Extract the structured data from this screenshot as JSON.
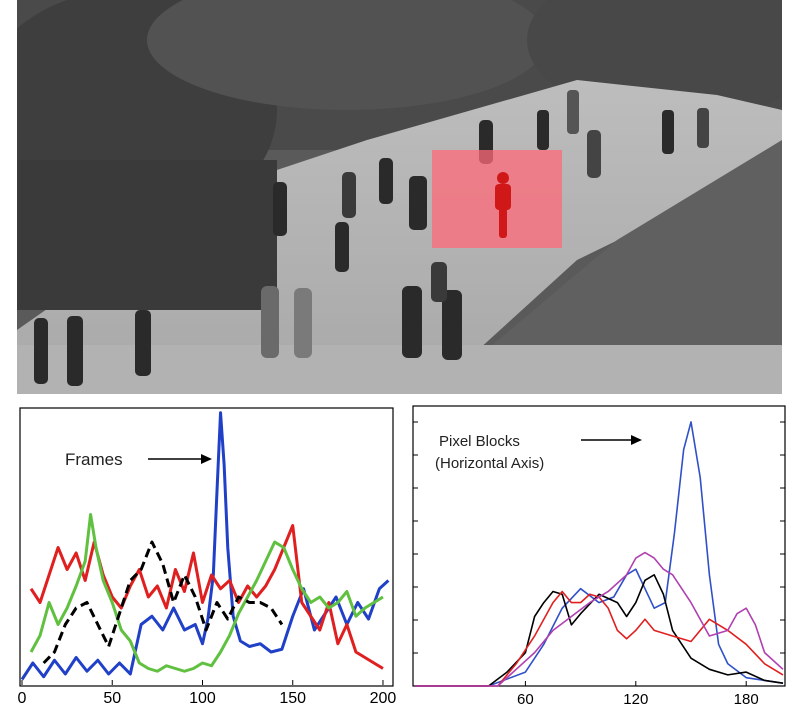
{
  "photo": {
    "description_icon": "crowd-walkway-photo-icon",
    "highlight_color": "#ff6b7a"
  },
  "chart_data": [
    {
      "type": "line",
      "title": "",
      "xlabel": "",
      "ylabel": "",
      "xlim": [
        0,
        205
      ],
      "ylim": [
        0,
        1
      ],
      "x_ticks": [
        0,
        50,
        100,
        150,
        200
      ],
      "x_tick_labels": [
        "0",
        "50",
        "100",
        "150",
        "200"
      ],
      "annotation": "Frames",
      "grid": false,
      "series": [
        {
          "color": "#2040c8",
          "style": "solid",
          "x": [
            0,
            6,
            12,
            18,
            24,
            30,
            36,
            42,
            48,
            54,
            60,
            66,
            72,
            78,
            84,
            90,
            96,
            100,
            103,
            106,
            108,
            110,
            112,
            114,
            117,
            121,
            126,
            132,
            138,
            144,
            150,
            156,
            162,
            168,
            174,
            180,
            186,
            192,
            198,
            203
          ],
          "y": [
            0.02,
            0.08,
            0.03,
            0.09,
            0.04,
            0.1,
            0.05,
            0.09,
            0.04,
            0.08,
            0.04,
            0.22,
            0.25,
            0.2,
            0.28,
            0.2,
            0.22,
            0.15,
            0.24,
            0.4,
            0.7,
            0.99,
            0.8,
            0.5,
            0.25,
            0.16,
            0.14,
            0.15,
            0.12,
            0.13,
            0.25,
            0.35,
            0.2,
            0.26,
            0.32,
            0.22,
            0.3,
            0.24,
            0.35,
            0.38
          ]
        },
        {
          "color": "#e02020",
          "style": "solid",
          "x": [
            5,
            10,
            15,
            20,
            25,
            30,
            35,
            40,
            45,
            50,
            55,
            60,
            65,
            70,
            75,
            80,
            85,
            90,
            95,
            100,
            105,
            110,
            115,
            120,
            125,
            130,
            135,
            140,
            145,
            150,
            155,
            160,
            165,
            170,
            175,
            180,
            185,
            190,
            195,
            200
          ],
          "y": [
            0.35,
            0.3,
            0.4,
            0.5,
            0.42,
            0.48,
            0.38,
            0.52,
            0.4,
            0.32,
            0.28,
            0.36,
            0.42,
            0.32,
            0.36,
            0.28,
            0.42,
            0.34,
            0.48,
            0.3,
            0.4,
            0.35,
            0.38,
            0.3,
            0.36,
            0.32,
            0.36,
            0.42,
            0.5,
            0.58,
            0.3,
            0.25,
            0.2,
            0.3,
            0.15,
            0.22,
            0.12,
            0.1,
            0.08,
            0.06
          ]
        },
        {
          "color": "#60c040",
          "style": "solid",
          "x": [
            5,
            10,
            15,
            20,
            25,
            30,
            35,
            38,
            41,
            45,
            50,
            55,
            60,
            65,
            70,
            75,
            80,
            85,
            90,
            95,
            100,
            105,
            110,
            115,
            120,
            125,
            130,
            135,
            140,
            145,
            150,
            155,
            160,
            165,
            170,
            175,
            180,
            185,
            190,
            195,
            200
          ],
          "y": [
            0.12,
            0.18,
            0.3,
            0.22,
            0.28,
            0.36,
            0.45,
            0.62,
            0.5,
            0.38,
            0.3,
            0.2,
            0.16,
            0.08,
            0.06,
            0.05,
            0.07,
            0.06,
            0.05,
            0.06,
            0.08,
            0.07,
            0.12,
            0.18,
            0.26,
            0.32,
            0.38,
            0.45,
            0.52,
            0.5,
            0.42,
            0.35,
            0.3,
            0.32,
            0.28,
            0.3,
            0.34,
            0.25,
            0.28,
            0.3,
            0.32
          ]
        },
        {
          "color": "#000000",
          "style": "dashed",
          "x": [
            12,
            18,
            24,
            30,
            36,
            42,
            48,
            54,
            60,
            66,
            72,
            78,
            84,
            90,
            96,
            102,
            108,
            114,
            120,
            126,
            132,
            138,
            144
          ],
          "y": [
            0.08,
            0.12,
            0.22,
            0.28,
            0.3,
            0.22,
            0.14,
            0.26,
            0.38,
            0.42,
            0.52,
            0.44,
            0.3,
            0.4,
            0.32,
            0.2,
            0.3,
            0.24,
            0.32,
            0.3,
            0.3,
            0.28,
            0.22
          ]
        }
      ]
    },
    {
      "type": "line",
      "title": "",
      "xlabel": "",
      "ylabel": "",
      "xlim": [
        0,
        200
      ],
      "ylim": [
        0,
        1
      ],
      "x_ticks": [
        60,
        120,
        180
      ],
      "x_tick_labels": [
        "60",
        "120",
        "180"
      ],
      "annotation_line1": "Pixel Blocks",
      "annotation_line2": "(Horizontal  Axis)",
      "grid": false,
      "series": [
        {
          "color": "#3050c8",
          "style": "solid",
          "x": [
            0,
            40,
            60,
            70,
            80,
            90,
            100,
            108,
            115,
            120,
            125,
            130,
            136,
            141,
            146,
            150,
            155,
            160,
            165,
            170,
            180,
            190,
            200
          ],
          "y": [
            0.0,
            0.0,
            0.05,
            0.15,
            0.28,
            0.35,
            0.3,
            0.32,
            0.4,
            0.42,
            0.35,
            0.28,
            0.3,
            0.55,
            0.85,
            0.95,
            0.75,
            0.4,
            0.15,
            0.08,
            0.03,
            0.02,
            0.01
          ]
        },
        {
          "color": "#000000",
          "style": "solid",
          "x": [
            0,
            40,
            50,
            60,
            65,
            70,
            75,
            80,
            85,
            90,
            100,
            110,
            115,
            120,
            125,
            130,
            135,
            140,
            150,
            160,
            170,
            180,
            190,
            200
          ],
          "y": [
            0.0,
            0.0,
            0.05,
            0.12,
            0.25,
            0.3,
            0.34,
            0.33,
            0.22,
            0.26,
            0.33,
            0.3,
            0.25,
            0.3,
            0.38,
            0.4,
            0.33,
            0.2,
            0.1,
            0.06,
            0.04,
            0.05,
            0.02,
            0.01
          ]
        },
        {
          "color": "#e02020",
          "style": "solid",
          "x": [
            0,
            45,
            55,
            65,
            75,
            80,
            85,
            90,
            95,
            100,
            105,
            110,
            115,
            120,
            125,
            130,
            140,
            150,
            160,
            170,
            180,
            190,
            200
          ],
          "y": [
            0.0,
            0.0,
            0.08,
            0.18,
            0.3,
            0.34,
            0.3,
            0.3,
            0.33,
            0.32,
            0.28,
            0.2,
            0.17,
            0.2,
            0.24,
            0.2,
            0.18,
            0.16,
            0.24,
            0.2,
            0.15,
            0.08,
            0.04
          ]
        },
        {
          "color": "#b040b0",
          "style": "solid",
          "x": [
            0,
            45,
            55,
            65,
            75,
            85,
            95,
            105,
            115,
            120,
            125,
            130,
            135,
            140,
            145,
            150,
            160,
            170,
            175,
            180,
            185,
            190,
            200
          ],
          "y": [
            0.0,
            0.0,
            0.06,
            0.12,
            0.2,
            0.25,
            0.3,
            0.34,
            0.4,
            0.46,
            0.48,
            0.46,
            0.42,
            0.4,
            0.35,
            0.3,
            0.18,
            0.2,
            0.26,
            0.28,
            0.22,
            0.12,
            0.06
          ]
        }
      ]
    }
  ]
}
